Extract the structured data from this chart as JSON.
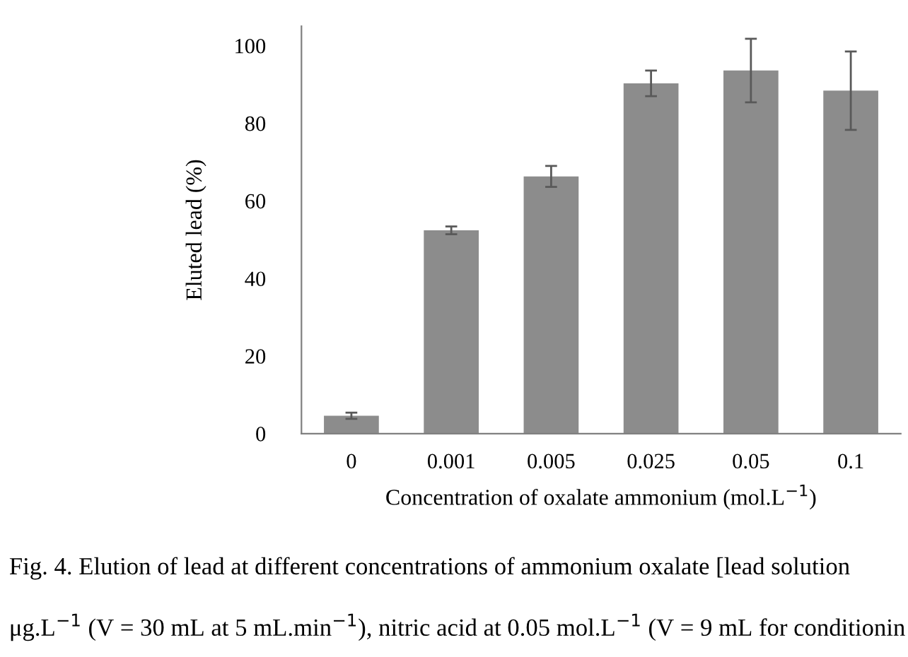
{
  "chart_data": {
    "type": "bar",
    "xlabel": "Concentration of oxalate ammonium (mol.L$^{−1}$)",
    "ylabel": "Eluted lead (%)",
    "categories": [
      "0",
      "0.001",
      "0.005",
      "0.025",
      "0.05",
      "0.1"
    ],
    "values": [
      4.6,
      52.4,
      66.3,
      90.3,
      93.6,
      88.4
    ],
    "errors": [
      0.8,
      1.0,
      2.7,
      3.3,
      8.2,
      10.1
    ],
    "color": "#8c8c8c",
    "ylim": [
      0,
      105
    ],
    "yticks": [
      0,
      20,
      40,
      60,
      80,
      100
    ],
    "grid": false,
    "annotations": [
      "Fig. 4. Elution of lead at different concentrations of ammonium oxalate [lead solution",
      "μg.L$^{−1}$ (V = 30 mL at 5 mL.min$^{−1}$), nitric acid at 0.05 mol.L$^{−1}$ (V = 9 mL for conditionin"
    ]
  }
}
